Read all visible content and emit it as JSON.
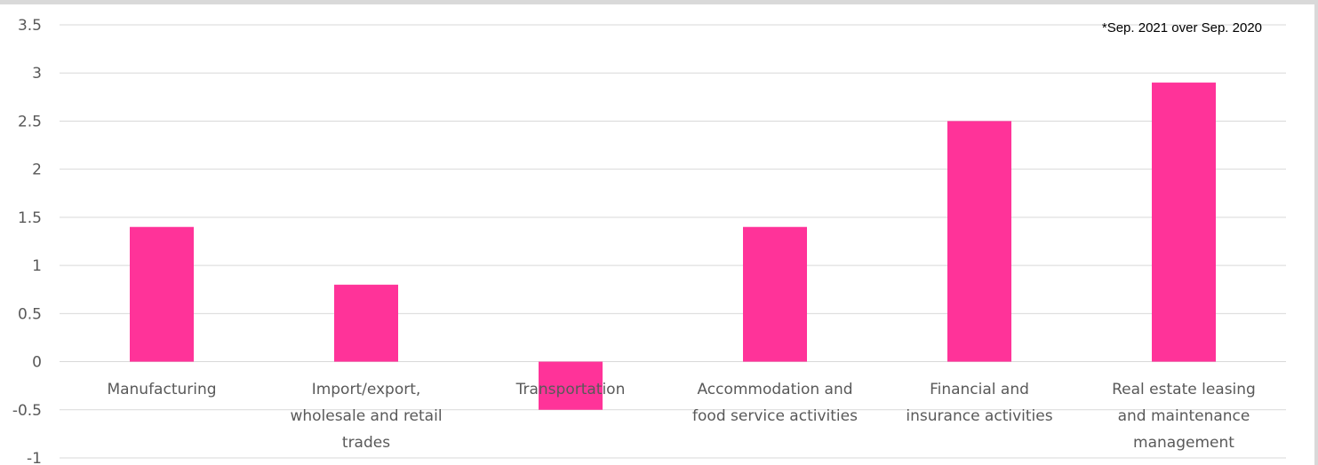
{
  "chart_data": {
    "type": "bar",
    "categories": [
      [
        "Manufacturing"
      ],
      [
        "Import/export,",
        "wholesale and retail",
        "trades"
      ],
      [
        "Transportation"
      ],
      [
        "Accommodation and",
        "food service activities"
      ],
      [
        "Financial and",
        "insurance activities"
      ],
      [
        "Real estate leasing",
        "and maintenance",
        "management"
      ]
    ],
    "values": [
      1.4,
      0.8,
      -0.5,
      1.4,
      2.5,
      2.9
    ],
    "yticks": [
      "3.5",
      "3",
      "2.5",
      "2",
      "1.5",
      "1",
      "0.5",
      "0",
      "-0.5",
      "-1"
    ],
    "ylim": [
      -1,
      3.5
    ],
    "title": "",
    "xlabel": "",
    "ylabel": "",
    "annotation": "*Sep. 2021 over Sep. 2020",
    "bar_color": "#FF3399",
    "grid": true,
    "gridline_color": "#d9d9d9",
    "text_color": "#595959"
  }
}
